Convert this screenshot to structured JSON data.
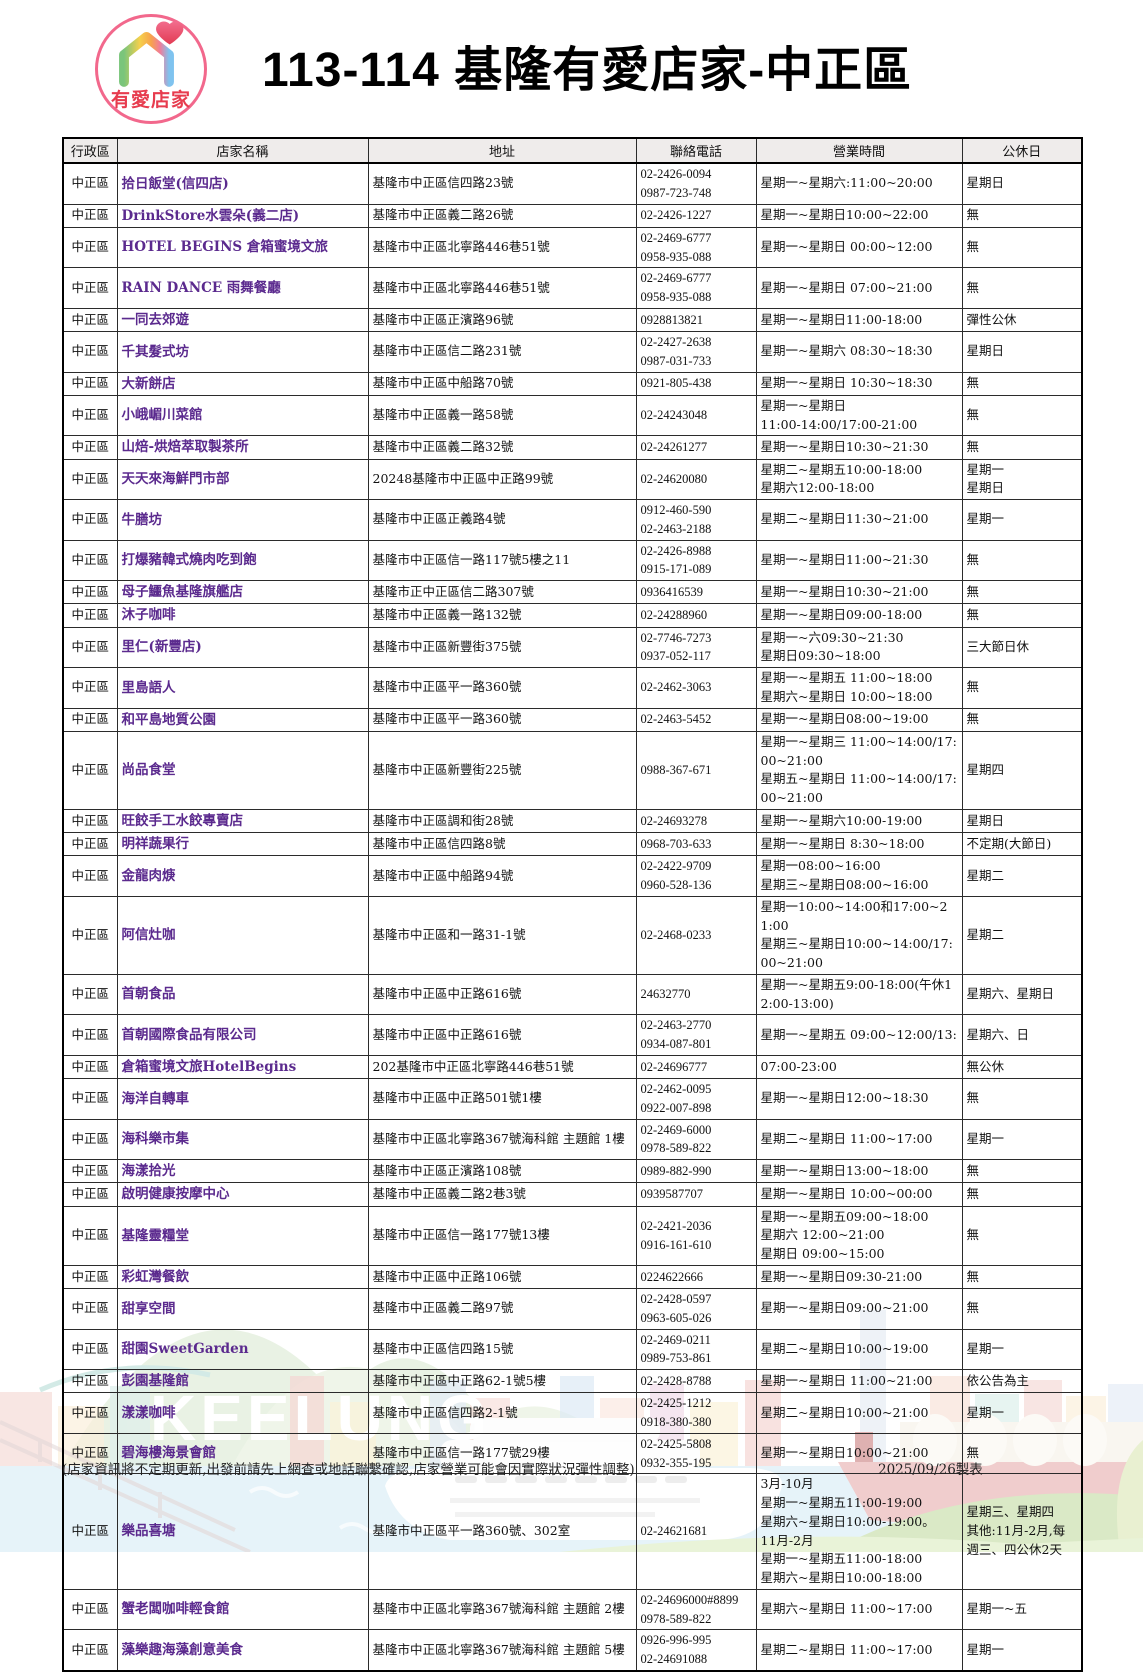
{
  "page": {
    "title": "113-114 基隆有愛店家-中正區",
    "logo_text": "有愛店家",
    "footer_note": "(店家資訊將不定期更新,出發前請先上網查或地話聯繫確認,店家營業可能會因實際狀況彈性調整)",
    "footer_date": "2025/09/26製表",
    "watermark_text": "KEELUNG"
  },
  "colors": {
    "store_name_text": "#5b2a8e",
    "header_bg": "#efeceb",
    "table_border": "#000000",
    "logo_ring": "#f2688c",
    "logo_text": "#e73c4e"
  },
  "table": {
    "columns": [
      "行政區",
      "店家名稱",
      "地址",
      "聯絡電話",
      "營業時間",
      "公休日"
    ],
    "rows": [
      {
        "district": "中正區",
        "name": "拾日飯堂(信四店)",
        "address": "基隆市中正區信四路23號",
        "phone": [
          "02-2426-0094",
          "0987-723-748"
        ],
        "hours": [
          "星期一~星期六:11:00~20:00"
        ],
        "closed": [
          "星期日"
        ]
      },
      {
        "district": "中正區",
        "name": "DrinkStore水雲朵(義二店)",
        "address": "基隆市中正區義二路26號",
        "phone": [
          "02-2426-1227"
        ],
        "hours": [
          "星期一~星期日10:00~22:00"
        ],
        "closed": [
          "無"
        ]
      },
      {
        "district": "中正區",
        "name": "HOTEL BEGINS 倉箱蜜境文旅",
        "address": "基隆市中正區北寧路446巷51號",
        "phone": [
          "02-2469-6777",
          "0958-935-088"
        ],
        "hours": [
          "星期一~星期日 00:00~12:00"
        ],
        "closed": [
          "無"
        ]
      },
      {
        "district": "中正區",
        "name": "RAIN DANCE 雨舞餐廳",
        "address": "基隆市中正區北寧路446巷51號",
        "phone": [
          "02-2469-6777",
          "0958-935-088"
        ],
        "hours": [
          "星期一~星期日 07:00~21:00"
        ],
        "closed": [
          "無"
        ]
      },
      {
        "district": "中正區",
        "name": "一同去郊遊",
        "address": "基隆市中正區正濱路96號",
        "phone": [
          "0928813821"
        ],
        "hours": [
          "星期一~星期日11:00-18:00"
        ],
        "closed": [
          "彈性公休"
        ]
      },
      {
        "district": "中正區",
        "name": "千其髮式坊",
        "address": "基隆市中正區信二路231號",
        "phone": [
          "02-2427-2638",
          "0987-031-733"
        ],
        "hours": [
          "星期一~星期六 08:30~18:30"
        ],
        "closed": [
          "星期日"
        ]
      },
      {
        "district": "中正區",
        "name": "大新餅店",
        "address": "基隆市中正區中船路70號",
        "phone": [
          "0921-805-438"
        ],
        "hours": [
          "星期一~星期日 10:30~18:30"
        ],
        "closed": [
          "無"
        ]
      },
      {
        "district": "中正區",
        "name": "小峨嵋川菜館",
        "address": "基隆市中正區義一路58號",
        "phone": [
          "02-24243048"
        ],
        "hours": [
          "星期一~星期日",
          "11:00-14:00/17:00-21:00"
        ],
        "closed": [
          "無"
        ]
      },
      {
        "district": "中正區",
        "name": "山焙-烘焙萃取製茶所",
        "address": "基隆市中正區義二路32號",
        "phone": [
          "02-24261277"
        ],
        "hours": [
          "星期一~星期日10:30~21:30"
        ],
        "closed": [
          "無"
        ]
      },
      {
        "district": "中正區",
        "name": "天天來海鮮門市部",
        "address": "20248基隆市中正區中正路99號",
        "phone": [
          "02-24620080"
        ],
        "hours": [
          "星期二~星期五10:00-18:00",
          "星期六12:00-18:00"
        ],
        "closed": [
          "星期一",
          "星期日"
        ]
      },
      {
        "district": "中正區",
        "name": "牛膳坊",
        "address": "基隆市中正區正義路4號",
        "phone": [
          "0912-460-590",
          "02-2463-2188"
        ],
        "hours": [
          "星期二~星期日11:30~21:00"
        ],
        "closed": [
          "星期一"
        ]
      },
      {
        "district": "中正區",
        "name": "打爆豬韓式燒肉吃到飽",
        "address": "基隆市中正區信一路117號5樓之11",
        "phone": [
          "02-2426-8988",
          "0915-171-089"
        ],
        "hours": [
          "星期一~星期日11:00~21:30"
        ],
        "closed": [
          "無"
        ]
      },
      {
        "district": "中正區",
        "name": "母子鱷魚基隆旗艦店",
        "address": "基隆市正中正區信二路307號",
        "phone": [
          "0936416539"
        ],
        "hours": [
          "星期一~星期日10:30~21:00"
        ],
        "closed": [
          "無"
        ]
      },
      {
        "district": "中正區",
        "name": "沐子咖啡",
        "address": "基隆市中正區義一路132號",
        "phone": [
          "02-24288960"
        ],
        "hours": [
          "星期一~星期日09:00-18:00"
        ],
        "closed": [
          "無"
        ]
      },
      {
        "district": "中正區",
        "name": "里仁(新豐店)",
        "address": "基隆市中正區新豐街375號",
        "phone": [
          "02-7746-7273",
          "0937-052-117"
        ],
        "hours": [
          "星期一~六09:30~21:30",
          "星期日09:30~18:00"
        ],
        "closed": [
          "三大節日休"
        ]
      },
      {
        "district": "中正區",
        "name": "里島語人",
        "address": "基隆市中正區平一路360號",
        "phone": [
          "02-2462-3063"
        ],
        "hours": [
          "星期一~星期五 11:00~18:00",
          "星期六~星期日 10:00~18:00"
        ],
        "closed": [
          "無"
        ]
      },
      {
        "district": "中正區",
        "name": "和平島地質公園",
        "address": "基隆市中正區平一路360號",
        "phone": [
          "02-2463-5452"
        ],
        "hours": [
          "星期一~星期日08:00~19:00"
        ],
        "closed": [
          "無"
        ]
      },
      {
        "district": "中正區",
        "name": "尚品食堂",
        "address": "基隆市中正區新豐街225號",
        "phone": [
          "0988-367-671"
        ],
        "hours": [
          "星期一~星期三 11:00~14:00/17:00~21:00",
          "星期五~星期日 11:00~14:00/17:00~21:00"
        ],
        "closed": [
          "星期四"
        ]
      },
      {
        "district": "中正區",
        "name": "旺餃手工水餃專賣店",
        "address": "基隆市中正區調和街28號",
        "phone": [
          "02-24693278"
        ],
        "hours": [
          "星期一~星期六10:00-19:00"
        ],
        "closed": [
          "星期日"
        ]
      },
      {
        "district": "中正區",
        "name": "明祥蔬果行",
        "address": "基隆市中正區信四路8號",
        "phone": [
          "0968-703-633"
        ],
        "hours": [
          "星期一~星期日 8:30~18:00"
        ],
        "closed": [
          "不定期(大節日)"
        ]
      },
      {
        "district": "中正區",
        "name": "金龍肉焿",
        "address": "基隆市中正區中船路94號",
        "phone": [
          "02-2422-9709",
          "0960-528-136"
        ],
        "hours": [
          "星期一08:00~16:00",
          "星期三~星期日08:00~16:00"
        ],
        "closed": [
          "星期二"
        ]
      },
      {
        "district": "中正區",
        "name": "阿信灶咖",
        "address": "基隆市中正區和一路31-1號",
        "phone": [
          "02-2468-0233"
        ],
        "hours": [
          "星期一10:00~14:00和17:00~21:00",
          "星期三~星期日10:00~14:00/17:00~21:00"
        ],
        "closed": [
          "星期二"
        ]
      },
      {
        "district": "中正區",
        "name": "首朝食品",
        "address": "基隆市中正區中正路616號",
        "phone": [
          "24632770"
        ],
        "hours": [
          "星期一~星期五9:00-18:00(午休12:00-13:00)"
        ],
        "closed": [
          "星期六、星期日"
        ]
      },
      {
        "district": "中正區",
        "name": "首朝國際食品有限公司",
        "address": "基隆市中正區中正路616號",
        "phone": [
          "02-2463-2770",
          "0934-087-801"
        ],
        "hours": [
          "星期一~星期五 09:00~12:00/13:"
        ],
        "closed": [
          "星期六、日"
        ]
      },
      {
        "district": "中正區",
        "name": "倉箱蜜境文旅HotelBegins",
        "address": "202基隆市中正區北寧路446巷51號",
        "phone": [
          "02-24696777"
        ],
        "hours": [
          "07:00-23:00"
        ],
        "closed": [
          "無公休"
        ]
      },
      {
        "district": "中正區",
        "name": "海洋自轉車",
        "address": "基隆市中正區中正路501號1樓",
        "phone": [
          "02-2462-0095",
          "0922-007-898"
        ],
        "hours": [
          "星期一~星期日12:00~18:30"
        ],
        "closed": [
          "無"
        ]
      },
      {
        "district": "中正區",
        "name": "海科樂市集",
        "address": "基隆市中正區北寧路367號海科館 主題館 1樓",
        "phone": [
          "02-2469-6000",
          "0978-589-822"
        ],
        "hours": [
          "星期二~星期日 11:00~17:00"
        ],
        "closed": [
          "星期一"
        ]
      },
      {
        "district": "中正區",
        "name": "海漾拾光",
        "address": "基隆市中正區正濱路108號",
        "phone": [
          "0989-882-990"
        ],
        "hours": [
          "星期一~星期日13:00~18:00"
        ],
        "closed": [
          "無"
        ]
      },
      {
        "district": "中正區",
        "name": "啟明健康按摩中心",
        "address": "基隆市中正區義二路2巷3號",
        "phone": [
          "0939587707"
        ],
        "hours": [
          "星期一~星期日 10:00~00:00"
        ],
        "closed": [
          "無"
        ]
      },
      {
        "district": "中正區",
        "name": "基隆靈糧堂",
        "address": "基隆市中正區信一路177號13樓",
        "phone": [
          "02-2421-2036",
          "0916-161-610"
        ],
        "hours": [
          "星期一~星期五09:00~18:00",
          "星期六 12:00~21:00",
          "星期日 09:00~15:00"
        ],
        "closed": [
          "無"
        ]
      },
      {
        "district": "中正區",
        "name": "彩虹灣餐飲",
        "address": "基隆市中正區中正路106號",
        "phone": [
          "0224622666"
        ],
        "hours": [
          "星期一~星期日09:30-21:00"
        ],
        "closed": [
          "無"
        ]
      },
      {
        "district": "中正區",
        "name": "甜享空間",
        "address": "基隆市中正區義二路97號",
        "phone": [
          "02-2428-0597",
          "0963-605-026"
        ],
        "hours": [
          "星期一~星期日09:00~21:00"
        ],
        "closed": [
          "無"
        ]
      },
      {
        "district": "中正區",
        "name": "甜園SweetGarden",
        "address": "基隆市中正區信四路15號",
        "phone": [
          "02-2469-0211",
          "0989-753-861"
        ],
        "hours": [
          "星期二~星期日10:00~19:00"
        ],
        "closed": [
          "星期一"
        ]
      },
      {
        "district": "中正區",
        "name": "彭園基隆館",
        "address": "基隆市中正區中正路62-1號5樓",
        "phone": [
          "02-2428-8788"
        ],
        "hours": [
          "星期一~星期日 11:00~21:00"
        ],
        "closed": [
          "依公告為主"
        ]
      },
      {
        "district": "中正區",
        "name": "漾漾咖啡",
        "address": "基隆市中正區信四路2-1號",
        "phone": [
          "02-2425-1212",
          "0918-380-380"
        ],
        "hours": [
          "星期二~星期日10:00~21:00"
        ],
        "closed": [
          "星期一"
        ]
      },
      {
        "district": "中正區",
        "name": "碧海樓海景會館",
        "address": "基隆市中正區信一路177號29樓",
        "phone": [
          "02-2425-5808",
          "0932-355-195"
        ],
        "hours": [
          "星期一~星期日10:00~21:00"
        ],
        "closed": [
          "無"
        ]
      },
      {
        "district": "中正區",
        "name": "樂品喜塘",
        "address": "基隆市中正區平一路360號、302室",
        "phone": [
          "02-24621681"
        ],
        "hours": [
          "3月-10月",
          "星期一~星期五11:00-19:00",
          "星期六~星期日10:00-19:00。",
          "11月-2月",
          "星期一~星期五11:00-18:00",
          "星期六~星期日10:00-18:00"
        ],
        "closed": [
          "星期三、星期四",
          "其他:11月-2月,每週三、四公休2天"
        ]
      },
      {
        "district": "中正區",
        "name": "蟹老闆咖啡輕食館",
        "address": "基隆市中正區北寧路367號海科館 主題館 2樓",
        "phone": [
          "02-24696000#8899",
          "0978-589-822"
        ],
        "hours": [
          "星期六~星期日 11:00~17:00"
        ],
        "closed": [
          "星期一~五"
        ]
      },
      {
        "district": "中正區",
        "name": "藻樂趣海藻創意美食",
        "address": "基隆市中正區北寧路367號海科館 主題館 5樓",
        "phone": [
          "0926-996-995",
          "02-24691088"
        ],
        "hours": [
          "星期二~星期日 11:00~17:00"
        ],
        "closed": [
          "星期一"
        ]
      }
    ]
  }
}
